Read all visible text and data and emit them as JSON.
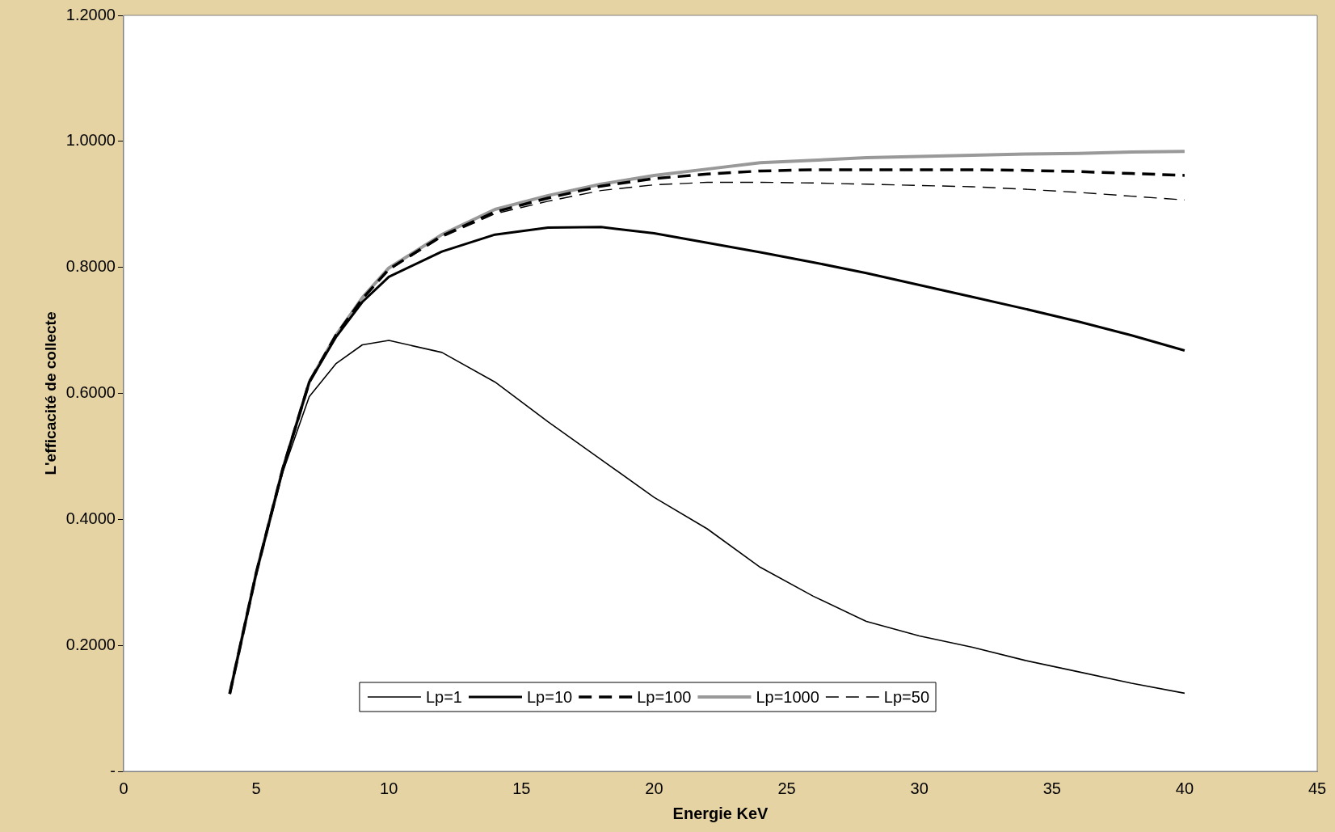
{
  "chart_data": {
    "type": "line",
    "xlabel": "Energie KeV",
    "ylabel": "L'efficacité de collecte",
    "x": [
      4,
      5,
      6,
      7,
      8,
      9,
      10,
      12,
      14,
      16,
      18,
      20,
      22,
      24,
      26,
      28,
      30,
      32,
      34,
      36,
      38,
      40
    ],
    "series": [
      {
        "name": "Lp=1",
        "color": "#000000",
        "line_style": "solid",
        "values": [
          0.123,
          0.315,
          0.475,
          0.595,
          0.647,
          0.677,
          0.684,
          0.665,
          0.618,
          0.555,
          0.495,
          0.435,
          0.385,
          0.324,
          0.278,
          0.238,
          0.215,
          0.197,
          0.176,
          0.158,
          0.14,
          0.124
        ]
      },
      {
        "name": "Lp=10",
        "color": "#000000",
        "line_style": "solid",
        "values": [
          0.123,
          0.315,
          0.48,
          0.618,
          0.689,
          0.745,
          0.785,
          0.825,
          0.852,
          0.863,
          0.864,
          0.854,
          0.839,
          0.824,
          0.808,
          0.791,
          0.772,
          0.753,
          0.734,
          0.714,
          0.692,
          0.668
        ]
      },
      {
        "name": "Lp=100",
        "color": "#000000",
        "line_style": "dashed",
        "values": [
          0.123,
          0.315,
          0.48,
          0.618,
          0.692,
          0.75,
          0.797,
          0.85,
          0.888,
          0.91,
          0.929,
          0.941,
          0.948,
          0.953,
          0.955,
          0.955,
          0.955,
          0.955,
          0.954,
          0.952,
          0.949,
          0.946
        ]
      },
      {
        "name": "Lp=1000",
        "color": "#999999",
        "line_style": "solid",
        "values": [
          0.123,
          0.315,
          0.48,
          0.618,
          0.692,
          0.752,
          0.799,
          0.852,
          0.892,
          0.914,
          0.932,
          0.946,
          0.956,
          0.966,
          0.97,
          0.974,
          0.976,
          0.978,
          0.98,
          0.981,
          0.983,
          0.984
        ]
      },
      {
        "name": "Lp=50",
        "color": "#000000",
        "line_style": "dashed",
        "values": [
          0.123,
          0.315,
          0.48,
          0.618,
          0.692,
          0.75,
          0.796,
          0.848,
          0.885,
          0.905,
          0.922,
          0.931,
          0.935,
          0.935,
          0.934,
          0.932,
          0.93,
          0.928,
          0.924,
          0.919,
          0.913,
          0.907
        ]
      }
    ],
    "xlim": [
      0,
      45
    ],
    "xticks": [
      0,
      5,
      10,
      15,
      20,
      25,
      30,
      35,
      40,
      45
    ],
    "ylim": [
      0,
      1.2
    ],
    "yticks": [
      {
        "value": 0,
        "label": "-"
      },
      {
        "value": 0.2,
        "label": "0.2000"
      },
      {
        "value": 0.4,
        "label": "0.4000"
      },
      {
        "value": 0.6,
        "label": "0.6000"
      },
      {
        "value": 0.8,
        "label": "0.8000"
      },
      {
        "value": 1.0,
        "label": "1.0000"
      },
      {
        "value": 1.2,
        "label": "1.2000"
      }
    ],
    "grid": false,
    "legend": "bottom",
    "marker": "none"
  }
}
